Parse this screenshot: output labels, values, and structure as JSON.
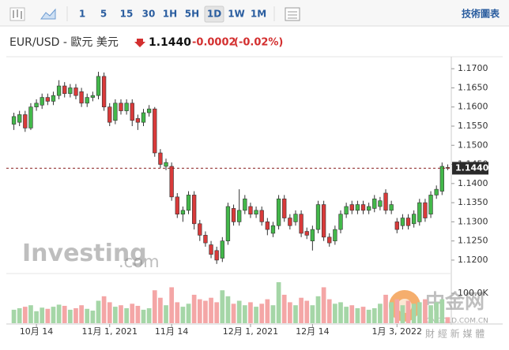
{
  "toolbar": {
    "intervals": [
      "1",
      "5",
      "15",
      "30",
      "1H",
      "5H",
      "1D",
      "1W",
      "1M"
    ],
    "selected_index": 6,
    "right_link": "技術圖表"
  },
  "header": {
    "symbol": "EUR/USD - 歐元 美元",
    "price": "1.1440",
    "change": "-0.0002",
    "change_pct": "(-0.02%)"
  },
  "watermarks": {
    "logo": "Investing",
    "logo_suffix": ".com",
    "site": "中金网",
    "site_url": "CNGOLD.COM.CN",
    "tagline": "財 經 新 媒 體"
  },
  "chart_data": {
    "type": "candlestick",
    "categories": [
      null,
      null,
      null,
      null,
      "10月 14",
      null,
      null,
      null,
      null,
      null,
      null,
      null,
      null,
      null,
      null,
      null,
      null,
      "11月 1, 2021",
      null,
      null,
      null,
      null,
      null,
      null,
      null,
      null,
      null,
      null,
      "11月 14",
      null,
      null,
      null,
      null,
      null,
      null,
      null,
      null,
      null,
      null,
      null,
      null,
      null,
      "12月 1, 2021",
      null,
      null,
      null,
      null,
      null,
      null,
      null,
      null,
      null,
      null,
      "12月 14",
      null,
      null,
      null,
      null,
      null,
      null,
      null,
      null,
      null,
      null,
      null,
      null,
      null,
      null,
      "1月 3, 2022",
      null,
      null,
      null,
      null,
      null,
      null,
      null,
      null,
      null
    ],
    "open": [
      1.1555,
      1.156,
      1.158,
      1.1545,
      1.16,
      1.1605,
      1.1625,
      1.1615,
      1.163,
      1.1655,
      1.1635,
      1.165,
      1.164,
      1.161,
      1.1625,
      1.163,
      1.168,
      1.16,
      1.1565,
      1.161,
      1.159,
      1.161,
      1.157,
      1.156,
      1.1585,
      1.1595,
      1.148,
      1.1445,
      1.1445,
      1.1365,
      1.132,
      1.133,
      1.137,
      1.1295,
      1.1265,
      1.124,
      1.1225,
      1.1205,
      1.125,
      1.1335,
      1.13,
      1.133,
      1.134,
      1.132,
      1.133,
      1.13,
      1.127,
      1.129,
      1.136,
      1.131,
      1.13,
      1.132,
      1.1275,
      1.125,
      1.128,
      1.1345,
      1.126,
      1.125,
      1.128,
      1.132,
      1.1345,
      1.133,
      1.1345,
      1.133,
      1.1335,
      1.134,
      1.1375,
      1.133,
      1.13,
      1.129,
      1.131,
      1.1295,
      1.13,
      1.135,
      1.132,
      1.137,
      1.138,
      1.1442
    ],
    "close": [
      1.1575,
      1.158,
      1.1545,
      1.16,
      1.161,
      1.1625,
      1.1615,
      1.163,
      1.1655,
      1.1635,
      1.165,
      1.163,
      1.161,
      1.1625,
      1.163,
      1.168,
      1.16,
      1.156,
      1.161,
      1.159,
      1.161,
      1.1565,
      1.156,
      1.1585,
      1.1595,
      1.148,
      1.145,
      1.1455,
      1.1365,
      1.132,
      1.133,
      1.137,
      1.1295,
      1.1265,
      1.1245,
      1.1215,
      1.12,
      1.125,
      1.134,
      1.13,
      1.133,
      1.136,
      1.132,
      1.133,
      1.13,
      1.128,
      1.129,
      1.136,
      1.131,
      1.129,
      1.132,
      1.127,
      1.1265,
      1.128,
      1.1345,
      1.126,
      1.1245,
      1.128,
      1.132,
      1.134,
      1.133,
      1.1345,
      1.133,
      1.134,
      1.136,
      1.1355,
      1.133,
      1.1345,
      1.128,
      1.131,
      1.129,
      1.132,
      1.135,
      1.131,
      1.137,
      1.1385,
      1.1445,
      1.144
    ],
    "high": [
      1.1585,
      1.159,
      1.159,
      1.161,
      1.162,
      1.1635,
      1.1635,
      1.164,
      1.167,
      1.1665,
      1.166,
      1.166,
      1.165,
      1.1635,
      1.164,
      1.1692,
      1.169,
      1.161,
      1.162,
      1.162,
      1.162,
      1.162,
      1.158,
      1.1595,
      1.1605,
      1.16,
      1.149,
      1.1465,
      1.1455,
      1.1375,
      1.134,
      1.138,
      1.138,
      1.1305,
      1.1275,
      1.125,
      1.1235,
      1.126,
      1.135,
      1.1345,
      1.1385,
      1.137,
      1.135,
      1.134,
      1.134,
      1.131,
      1.13,
      1.137,
      1.137,
      1.132,
      1.133,
      1.133,
      1.1285,
      1.129,
      1.1355,
      1.1355,
      1.127,
      1.129,
      1.133,
      1.135,
      1.1355,
      1.1355,
      1.1355,
      1.135,
      1.137,
      1.1365,
      1.1385,
      1.1355,
      1.131,
      1.132,
      1.132,
      1.133,
      1.136,
      1.136,
      1.138,
      1.1395,
      1.1455,
      1.145
    ],
    "low": [
      1.154,
      1.155,
      1.1535,
      1.154,
      1.159,
      1.1595,
      1.1605,
      1.1605,
      1.162,
      1.1625,
      1.1625,
      1.162,
      1.16,
      1.16,
      1.1615,
      1.162,
      1.159,
      1.155,
      1.1555,
      1.158,
      1.158,
      1.155,
      1.154,
      1.155,
      1.1575,
      1.147,
      1.144,
      1.1435,
      1.1355,
      1.131,
      1.13,
      1.132,
      1.128,
      1.125,
      1.1235,
      1.1205,
      1.119,
      1.1195,
      1.124,
      1.129,
      1.129,
      1.132,
      1.131,
      1.131,
      1.129,
      1.1265,
      1.126,
      1.128,
      1.13,
      1.128,
      1.129,
      1.126,
      1.1255,
      1.1225,
      1.127,
      1.125,
      1.1235,
      1.124,
      1.127,
      1.131,
      1.132,
      1.132,
      1.132,
      1.132,
      1.1325,
      1.133,
      1.132,
      1.132,
      1.127,
      1.128,
      1.128,
      1.1285,
      1.129,
      1.13,
      1.131,
      1.136,
      1.137,
      1.1435
    ],
    "up_color": "#43b84a",
    "down_color": "#d93a3a",
    "ylim": [
      1.1169,
      1.1723
    ],
    "yticks": [
      {
        "value": 1.12,
        "label": "1.1200"
      },
      {
        "value": 1.125,
        "label": "1.1250"
      },
      {
        "value": 1.13,
        "label": "1.1300"
      },
      {
        "value": 1.135,
        "label": "1.1350"
      },
      {
        "value": 1.14,
        "label": "1.1400"
      },
      {
        "value": 1.145,
        "label": "1.1450"
      },
      {
        "value": 1.15,
        "label": "1.1500"
      },
      {
        "value": 1.155,
        "label": "1.1550"
      },
      {
        "value": 1.16,
        "label": "1.1600"
      },
      {
        "value": 1.165,
        "label": "1.1650"
      },
      {
        "value": 1.17,
        "label": "1.1700"
      }
    ],
    "grid": false,
    "last_price": {
      "value": 1.144,
      "label": "1.1440"
    },
    "volume": {
      "values": [
        45000,
        50000,
        55000,
        60000,
        40000,
        52000,
        48000,
        55000,
        62000,
        58000,
        45000,
        50000,
        60000,
        48000,
        42000,
        75000,
        90000,
        70000,
        55000,
        60000,
        50000,
        65000,
        58000,
        45000,
        50000,
        110000,
        85000,
        60000,
        120000,
        70000,
        55000,
        65000,
        95000,
        80000,
        75000,
        85000,
        70000,
        110000,
        90000,
        65000,
        75000,
        60000,
        70000,
        55000,
        65000,
        80000,
        60000,
        137000,
        95000,
        70000,
        60000,
        85000,
        75000,
        60000,
        90000,
        120000,
        80000,
        65000,
        70000,
        55000,
        60000,
        50000,
        55000,
        45000,
        50000,
        65000,
        95000,
        70000,
        80000,
        60000,
        75000,
        65000,
        70000,
        80000,
        60000,
        70000,
        80000,
        20000
      ],
      "ylim": [
        0,
        158000
      ],
      "yticks": [
        {
          "value": 100000,
          "label": "100.0K"
        }
      ],
      "up_color": "#a5d6a7",
      "down_color": "#f4a6a6"
    }
  }
}
